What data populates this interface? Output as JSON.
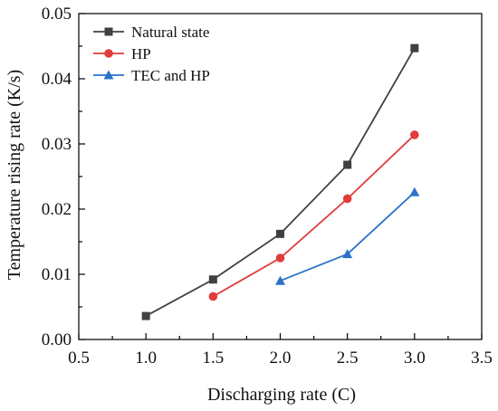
{
  "chart_data": {
    "type": "line",
    "title": "",
    "xlabel": "Discharging rate (C)",
    "ylabel": "Temperature rising rate (K/s)",
    "xlim": [
      0.5,
      3.5
    ],
    "ylim": [
      0.0,
      0.05
    ],
    "xticks": [
      "0.5",
      "1.0",
      "1.5",
      "2.0",
      "2.5",
      "3.0",
      "3.5"
    ],
    "yticks": [
      "0.00",
      "0.01",
      "0.02",
      "0.03",
      "0.04",
      "0.05"
    ],
    "xtick_values": [
      0.5,
      1.0,
      1.5,
      2.0,
      2.5,
      3.0,
      3.5
    ],
    "ytick_values": [
      0.0,
      0.01,
      0.02,
      0.03,
      0.04,
      0.05
    ],
    "grid": false,
    "legend_position": "top-left",
    "series": [
      {
        "name": "Natural state",
        "marker": "square",
        "color": "#404040",
        "x": [
          1.0,
          1.5,
          2.0,
          2.5,
          3.0
        ],
        "y": [
          0.0036,
          0.0092,
          0.0162,
          0.0268,
          0.0447
        ]
      },
      {
        "name": "HP",
        "marker": "circle",
        "color": "#e03c3c",
        "x": [
          1.5,
          2.0,
          2.5,
          3.0
        ],
        "y": [
          0.0066,
          0.0125,
          0.0216,
          0.0314
        ]
      },
      {
        "name": "TEC and HP",
        "marker": "triangle",
        "color": "#2a73c9",
        "x": [
          2.0,
          2.5,
          3.0
        ],
        "y": [
          0.009,
          0.0131,
          0.0226
        ]
      }
    ]
  }
}
